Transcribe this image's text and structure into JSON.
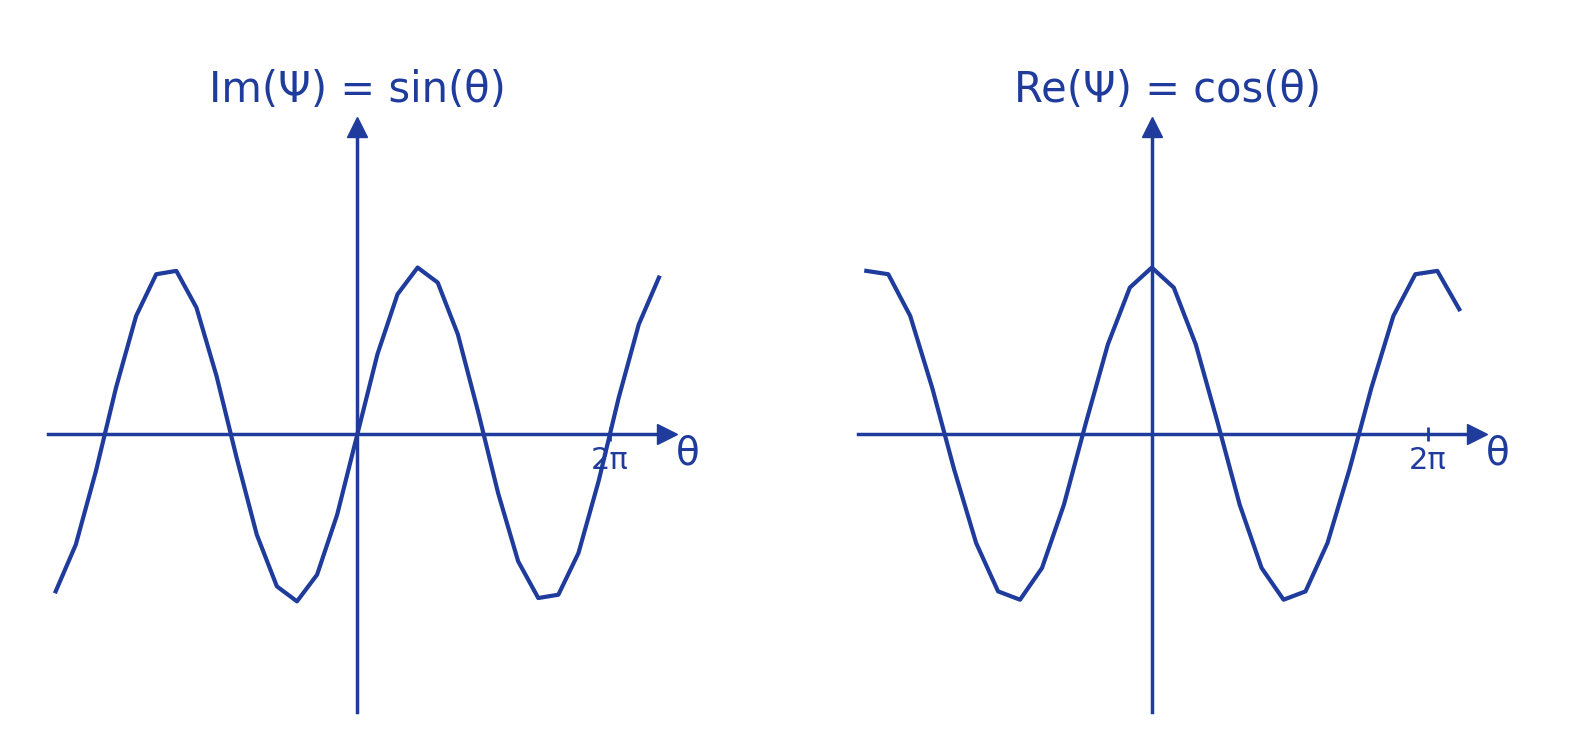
{
  "chart_data": [
    {
      "type": "line",
      "title": "Im(Ψ) = sin(θ)",
      "x_label": "θ",
      "color": "#1f3c9c",
      "x": [
        -7.5,
        -7.0,
        -6.5,
        -6.0,
        -5.5,
        -5.0,
        -4.5,
        -4.0,
        -3.5,
        -3.0,
        -2.5,
        -2.0,
        -1.5,
        -1.0,
        -0.5,
        0.0,
        0.5,
        1.0,
        1.5,
        2.0,
        2.5,
        3.0,
        3.5,
        4.0,
        4.5,
        5.0,
        5.5,
        6.0,
        6.5,
        7.0,
        7.5
      ],
      "values": [
        -0.94,
        -0.66,
        -0.22,
        0.28,
        0.71,
        0.96,
        0.98,
        0.76,
        0.35,
        -0.14,
        -0.6,
        -0.91,
        -1.0,
        -0.84,
        -0.48,
        0.0,
        0.48,
        0.84,
        1.0,
        0.91,
        0.6,
        0.14,
        -0.35,
        -0.76,
        -0.98,
        -0.96,
        -0.71,
        -0.28,
        0.22,
        0.66,
        0.94
      ],
      "xlim": [
        -7.7,
        7.7
      ],
      "ylim": [
        -1.66,
        1.84
      ],
      "xticks": [
        {
          "value": 6.283,
          "label": "2π"
        }
      ],
      "yticks": [],
      "tick_labels": "x",
      "grid": false
    },
    {
      "type": "line",
      "title": "Re(Ψ) = cos(θ)",
      "x_label": "θ",
      "color": "#1f3c9c",
      "x": [
        -6.5,
        -6.0,
        -5.5,
        -5.0,
        -4.5,
        -4.0,
        -3.5,
        -3.0,
        -2.5,
        -2.0,
        -1.5,
        -1.0,
        -0.5,
        0.0,
        0.5,
        1.0,
        1.5,
        2.0,
        2.5,
        3.0,
        3.5,
        4.0,
        4.5,
        5.0,
        5.5,
        6.0,
        6.5,
        7.0
      ],
      "values": [
        0.98,
        0.96,
        0.71,
        0.28,
        -0.21,
        -0.65,
        -0.94,
        -0.99,
        -0.8,
        -0.42,
        0.07,
        0.54,
        0.88,
        1.0,
        0.88,
        0.54,
        0.07,
        -0.42,
        -0.8,
        -0.99,
        -0.94,
        -0.65,
        -0.21,
        0.28,
        0.71,
        0.96,
        0.98,
        0.75
      ],
      "xlim": [
        -6.7,
        7.4
      ],
      "ylim": [
        -1.66,
        1.84
      ],
      "xticks": [
        {
          "value": 6.283,
          "label": "2π"
        }
      ],
      "yticks": [],
      "tick_labels": "x",
      "grid": false
    }
  ]
}
